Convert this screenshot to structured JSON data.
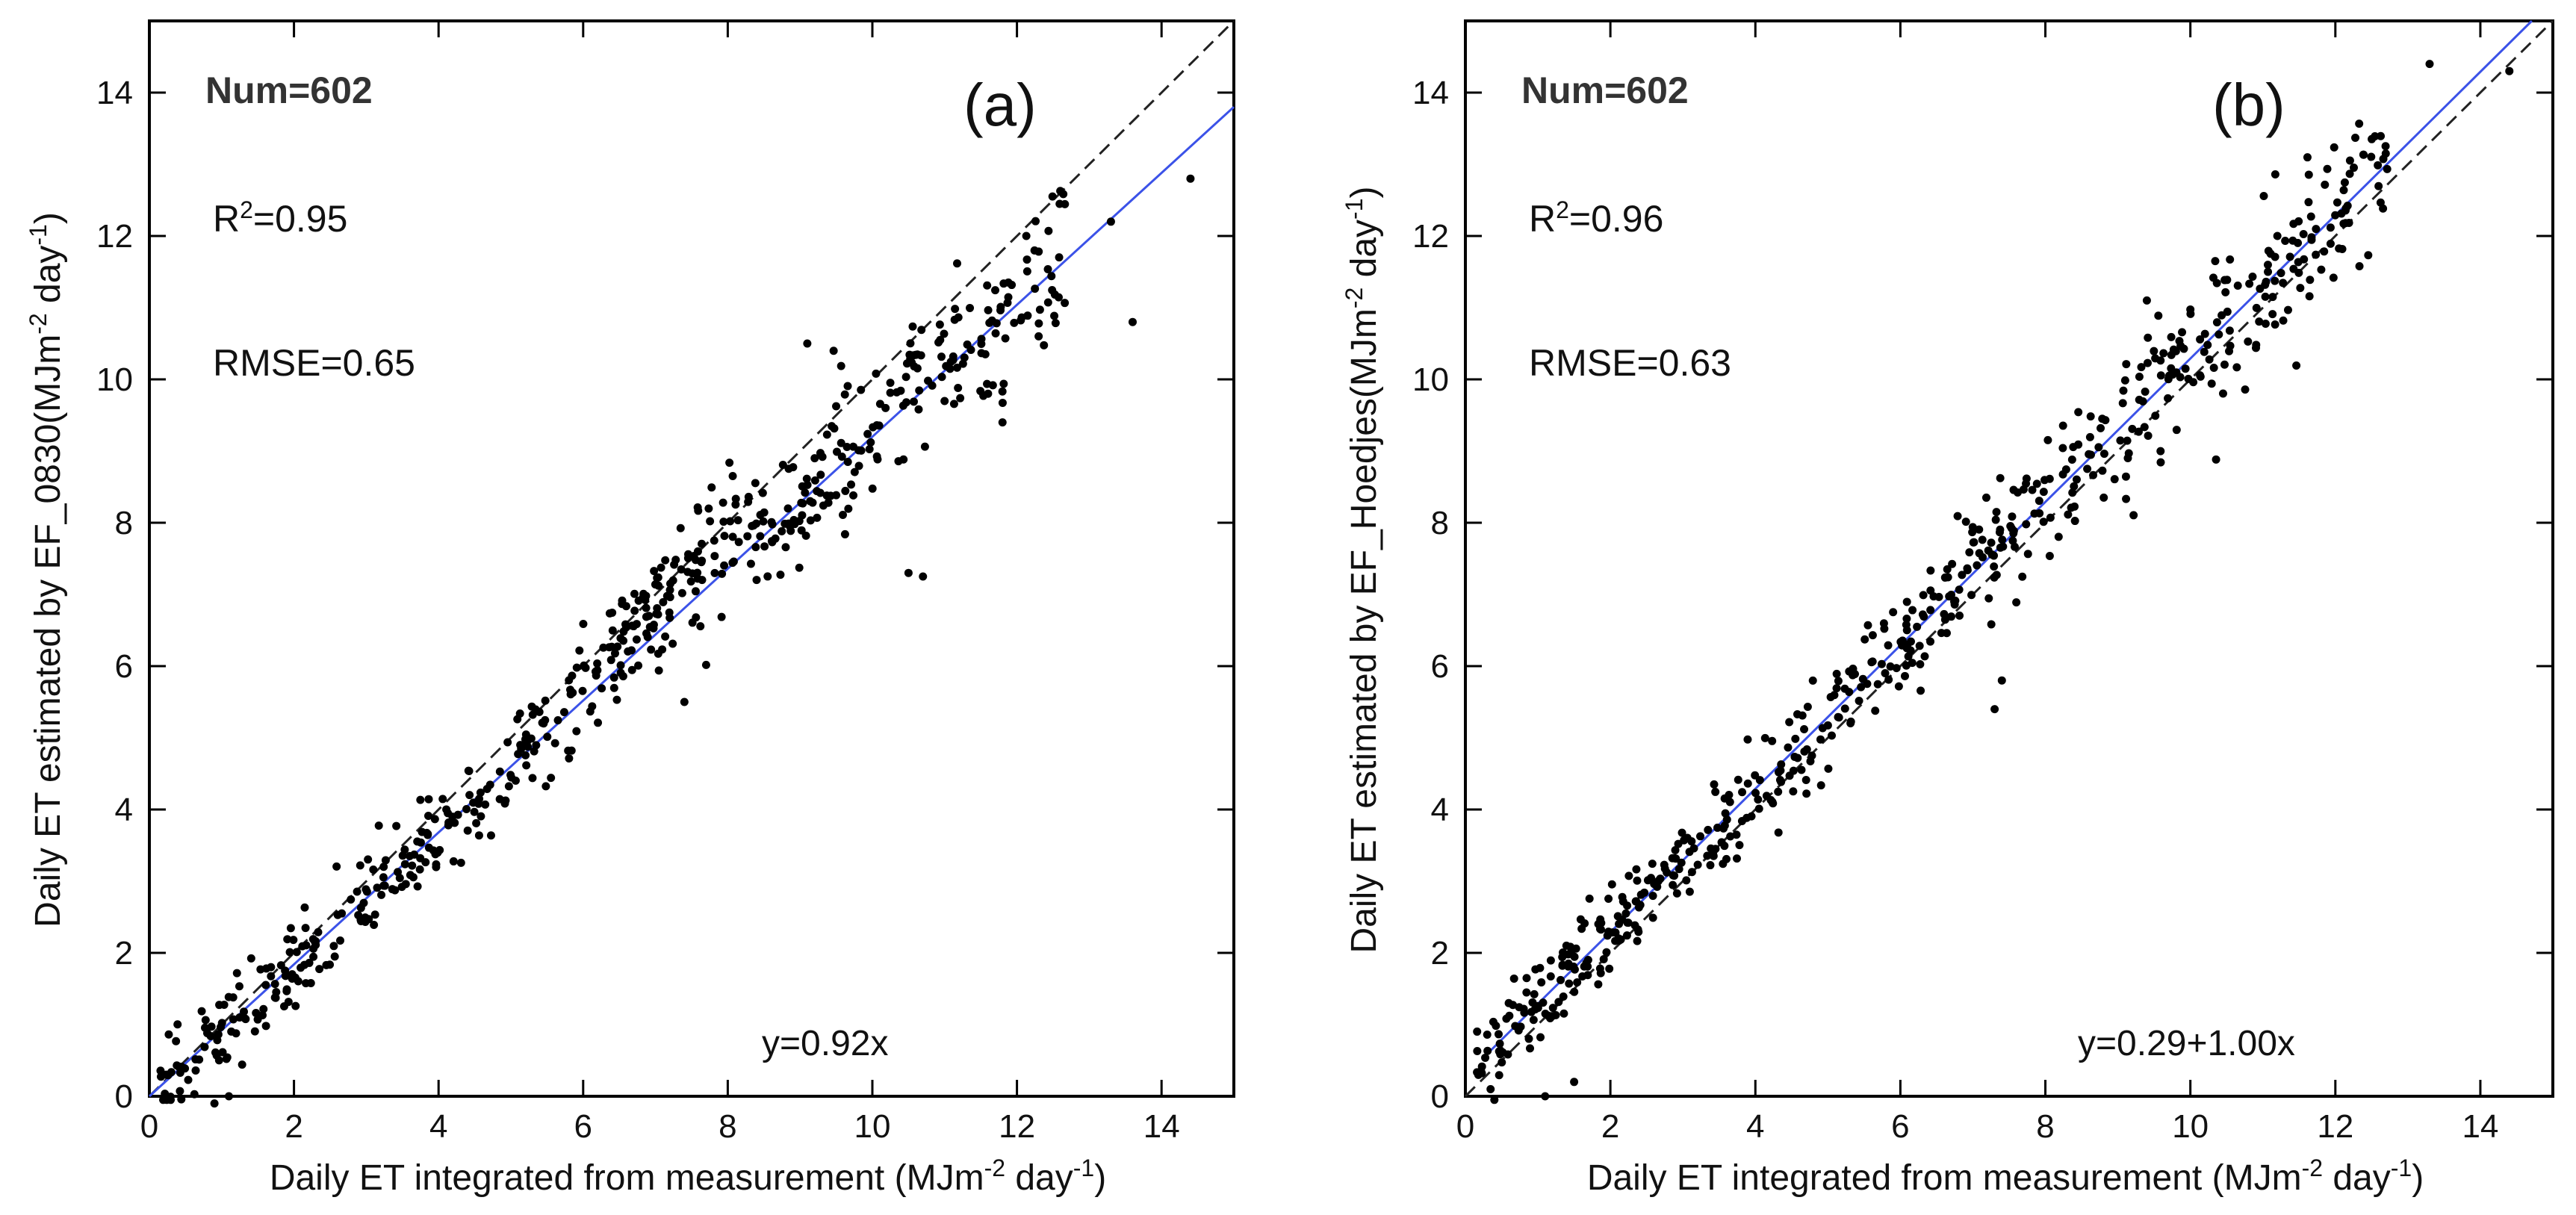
{
  "colors": {
    "fit_line": "#3b52e8",
    "one_to_one": "#222222",
    "points": "#000000",
    "frame": "#000000"
  },
  "chart_data": [
    {
      "type": "scatter",
      "panel_label": "(a)",
      "xlabel": "Daily ET integrated from measurement (MJm",
      "xlabel_unit_exp": "-2",
      "xlabel_unit_tail": " day",
      "xlabel_unit_exp2": "-1",
      "xlabel_close": ")",
      "ylabel": "Daily ET estimated by EF_0830(MJm",
      "ylabel_unit_exp": "-2",
      "ylabel_unit_tail": " day",
      "ylabel_unit_exp2": "-1",
      "ylabel_close": ")",
      "xlim": [
        0,
        15
      ],
      "ylim": [
        0,
        15
      ],
      "xticks": [
        0,
        2,
        4,
        6,
        8,
        10,
        12,
        14
      ],
      "yticks": [
        0,
        2,
        4,
        6,
        8,
        10,
        12,
        14
      ],
      "num_text": "Num=602",
      "r2_prefix": "R",
      "r2_exp": "2",
      "r2_value": "=0.95",
      "rmse_text": "RMSE=0.65",
      "equation": "y=0.92x",
      "fit": {
        "intercept": 0.0,
        "slope": 0.92
      },
      "one_to_one": true,
      "n": 602,
      "rmse": 0.65,
      "seed": 7,
      "bias": -0.2,
      "outliers": [
        [
          14.4,
          12.8
        ],
        [
          13.6,
          10.8
        ],
        [
          13.3,
          12.2
        ],
        [
          11.6,
          9.8
        ],
        [
          11.8,
          9.4
        ],
        [
          10.5,
          7.3
        ],
        [
          10.7,
          7.25
        ],
        [
          9.1,
          10.5
        ],
        [
          7.4,
          5.5
        ],
        [
          0.9,
          -0.1
        ],
        [
          1.1,
          0.0
        ],
        [
          12.3,
          10.6
        ]
      ]
    },
    {
      "type": "scatter",
      "panel_label": "(b)",
      "xlabel": "Daily ET integrated from measurement (MJm",
      "xlabel_unit_exp": "-2",
      "xlabel_unit_tail": " day",
      "xlabel_unit_exp2": "-1",
      "xlabel_close": ")",
      "ylabel": "Daily ET estimated by EF_Hoedjes(MJm",
      "ylabel_unit_exp": "-2",
      "ylabel_unit_tail": " day",
      "ylabel_unit_exp2": "-1",
      "ylabel_close": ")",
      "xlim": [
        0,
        15
      ],
      "ylim": [
        0,
        15
      ],
      "xticks": [
        0,
        2,
        4,
        6,
        8,
        10,
        12,
        14
      ],
      "yticks": [
        0,
        2,
        4,
        6,
        8,
        10,
        12,
        14
      ],
      "num_text": "Num=602",
      "r2_prefix": "R",
      "r2_exp": "2",
      "r2_value": "=0.96",
      "rmse_text": "RMSE=0.63",
      "equation": "y=0.29+1.00x",
      "fit": {
        "intercept": 0.29,
        "slope": 1.0
      },
      "one_to_one": true,
      "n": 602,
      "rmse": 0.63,
      "seed": 13,
      "bias": 0.0,
      "outliers": [
        [
          13.3,
          14.4
        ],
        [
          14.4,
          14.3
        ],
        [
          7.3,
          5.4
        ],
        [
          7.4,
          5.8
        ],
        [
          1.5,
          0.2
        ],
        [
          1.1,
          0.0
        ],
        [
          0.4,
          -0.05
        ],
        [
          9.4,
          11.1
        ],
        [
          11.2,
          12.0
        ]
      ]
    }
  ]
}
